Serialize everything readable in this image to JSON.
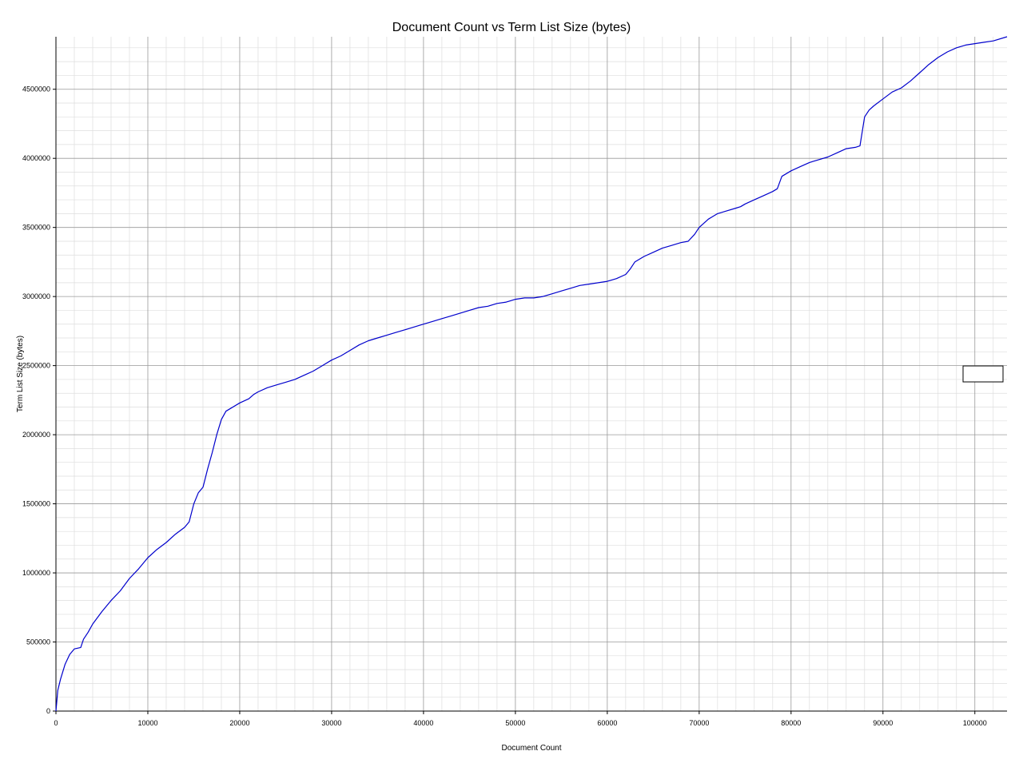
{
  "chart_data": {
    "type": "line",
    "title": "Document Count vs Term List Size (bytes)",
    "xlabel": "Document Count",
    "ylabel": "Term List Size (bytes)",
    "xlim": [
      0,
      103500
    ],
    "ylim": [
      0,
      4880000
    ],
    "xticks": [
      "0",
      "10000",
      "20000",
      "30000",
      "40000",
      "50000",
      "60000",
      "70000",
      "80000",
      "90000",
      "100000"
    ],
    "yticks": [
      "0",
      "500000",
      "1000000",
      "1500000",
      "2000000",
      "2500000",
      "3000000",
      "3500000",
      "4000000",
      "4500000"
    ],
    "grid": true,
    "legend": "right",
    "series": [
      {
        "color": "#0000cc",
        "x": [
          0,
          200,
          500,
          1000,
          1500,
          2000,
          2700,
          3000,
          3500,
          4000,
          5000,
          6000,
          7000,
          8000,
          9000,
          10000,
          11000,
          12000,
          13000,
          14000,
          14500,
          15000,
          15500,
          16000,
          16500,
          17000,
          17500,
          18000,
          18500,
          19000,
          20000,
          21000,
          21500,
          22000,
          23000,
          24000,
          25000,
          26000,
          27000,
          28000,
          29000,
          30000,
          31000,
          32000,
          33000,
          34000,
          35000,
          36000,
          37000,
          38000,
          39000,
          40000,
          41000,
          42000,
          43000,
          44000,
          45000,
          46000,
          47000,
          48000,
          49000,
          50000,
          51000,
          52000,
          53000,
          54000,
          55000,
          56000,
          57000,
          58000,
          59000,
          60000,
          61000,
          62000,
          62500,
          63000,
          64000,
          65000,
          66000,
          67000,
          68000,
          68800,
          69500,
          70000,
          71000,
          72000,
          73000,
          74000,
          74500,
          75000,
          76000,
          77000,
          78000,
          78500,
          79000,
          80000,
          81000,
          82000,
          83000,
          84000,
          85000,
          86000,
          87000,
          87500,
          88000,
          88500,
          89000,
          90000,
          91000,
          92000,
          93000,
          94000,
          95000,
          96000,
          97000,
          98000,
          99000,
          100000,
          101000,
          102000,
          103500
        ],
        "y": [
          0,
          150000,
          230000,
          340000,
          410000,
          450000,
          460000,
          520000,
          570000,
          630000,
          720000,
          800000,
          870000,
          960000,
          1030000,
          1110000,
          1170000,
          1220000,
          1280000,
          1330000,
          1370000,
          1500000,
          1580000,
          1620000,
          1750000,
          1870000,
          2000000,
          2110000,
          2170000,
          2190000,
          2230000,
          2260000,
          2290000,
          2310000,
          2340000,
          2360000,
          2380000,
          2400000,
          2430000,
          2460000,
          2500000,
          2540000,
          2570000,
          2610000,
          2650000,
          2680000,
          2700000,
          2720000,
          2740000,
          2760000,
          2780000,
          2800000,
          2820000,
          2840000,
          2860000,
          2880000,
          2900000,
          2920000,
          2930000,
          2950000,
          2960000,
          2980000,
          2990000,
          2990000,
          3000000,
          3020000,
          3040000,
          3060000,
          3080000,
          3090000,
          3100000,
          3110000,
          3130000,
          3160000,
          3200000,
          3250000,
          3290000,
          3320000,
          3350000,
          3370000,
          3390000,
          3400000,
          3450000,
          3500000,
          3560000,
          3600000,
          3620000,
          3640000,
          3650000,
          3670000,
          3700000,
          3730000,
          3760000,
          3780000,
          3870000,
          3910000,
          3940000,
          3970000,
          3990000,
          4010000,
          4040000,
          4070000,
          4080000,
          4090000,
          4300000,
          4350000,
          4380000,
          4430000,
          4480000,
          4510000,
          4560000,
          4620000,
          4680000,
          4730000,
          4770000,
          4800000,
          4820000,
          4830000,
          4840000,
          4850000,
          4880000
        ]
      }
    ]
  }
}
